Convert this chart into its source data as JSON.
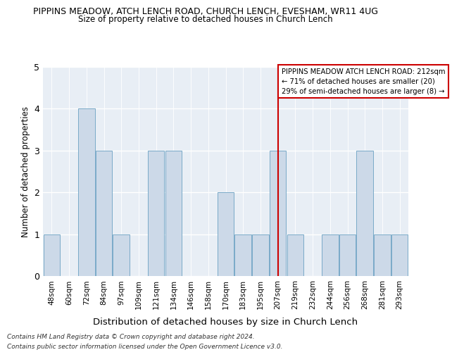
{
  "title1": "PIPPINS MEADOW, ATCH LENCH ROAD, CHURCH LENCH, EVESHAM, WR11 4UG",
  "title2": "Size of property relative to detached houses in Church Lench",
  "xlabel": "Distribution of detached houses by size in Church Lench",
  "ylabel": "Number of detached properties",
  "categories": [
    "48sqm",
    "60sqm",
    "72sqm",
    "84sqm",
    "97sqm",
    "109sqm",
    "121sqm",
    "134sqm",
    "146sqm",
    "158sqm",
    "170sqm",
    "183sqm",
    "195sqm",
    "207sqm",
    "219sqm",
    "232sqm",
    "244sqm",
    "256sqm",
    "268sqm",
    "281sqm",
    "293sqm"
  ],
  "values": [
    1,
    0,
    4,
    3,
    1,
    0,
    3,
    3,
    0,
    0,
    2,
    1,
    1,
    3,
    1,
    0,
    1,
    1,
    3,
    1,
    1
  ],
  "bar_color": "#ccd9e8",
  "bar_edge_color": "#7aaac8",
  "highlight_line_index": 13,
  "highlight_line_color": "#cc0000",
  "ylim": [
    0,
    5
  ],
  "yticks": [
    0,
    1,
    2,
    3,
    4,
    5
  ],
  "annotation_title": "PIPPINS MEADOW ATCH LENCH ROAD: 212sqm",
  "annotation_line1": "← 71% of detached houses are smaller (20)",
  "annotation_line2": "29% of semi-detached houses are larger (8) →",
  "annotation_box_color": "#cc0000",
  "footnote1": "Contains HM Land Registry data © Crown copyright and database right 2024.",
  "footnote2": "Contains public sector information licensed under the Open Government Licence v3.0.",
  "bg_color": "#ffffff",
  "plot_bg_color": "#e8eef5"
}
